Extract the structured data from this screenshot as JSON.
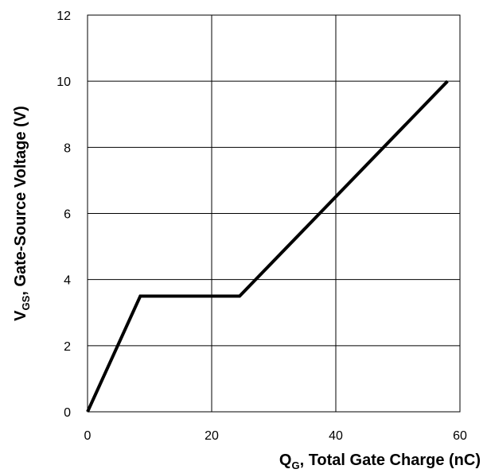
{
  "chart_data": {
    "type": "line",
    "xlabel": {
      "main": "Q",
      "sub": "G",
      "rest": ", Total Gate Charge (nC)"
    },
    "ylabel": {
      "main": "V",
      "sub": "GS",
      "rest": ",  Gate-Source Voltage (V)"
    },
    "xlim": [
      0,
      60
    ],
    "ylim": [
      0,
      12
    ],
    "x_ticks": [
      0,
      20,
      40,
      60
    ],
    "y_ticks": [
      0,
      2,
      4,
      6,
      8,
      10,
      12
    ],
    "grid": true,
    "series": [
      {
        "color": "#000000",
        "x": [
          0,
          8.5,
          24.5,
          58
        ],
        "y": [
          0,
          3.5,
          3.5,
          10
        ]
      }
    ]
  }
}
